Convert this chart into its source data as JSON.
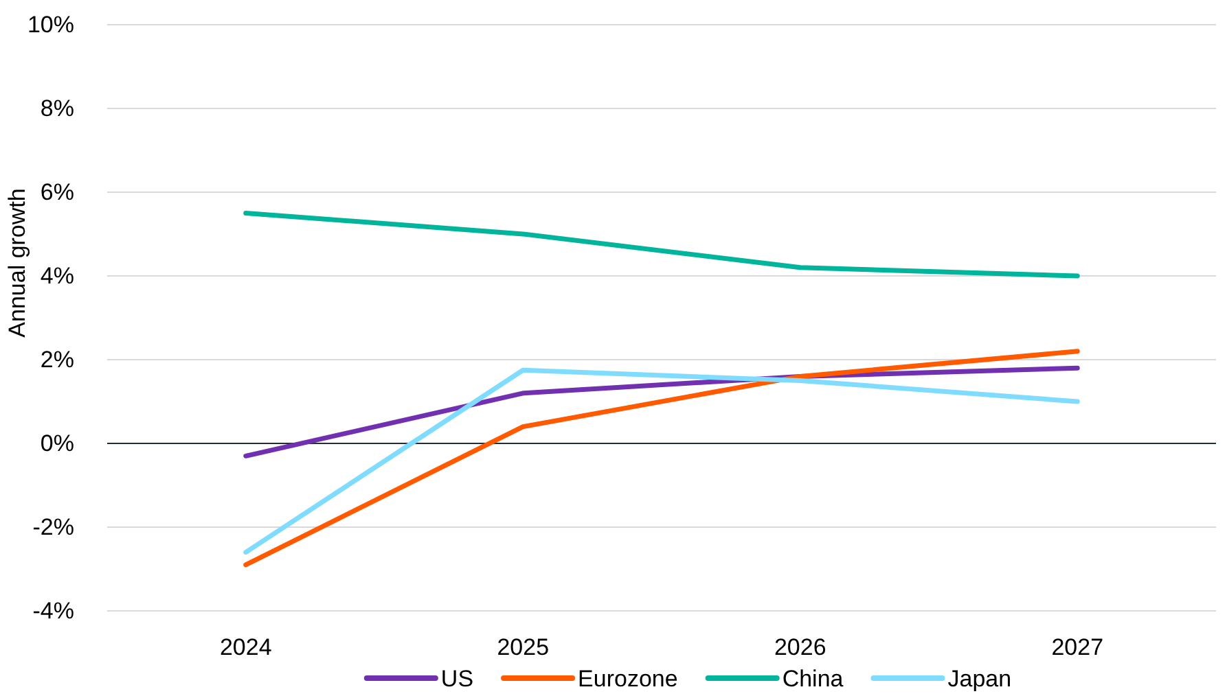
{
  "chart_data": {
    "type": "line",
    "ylabel": "Annual growth",
    "categories": [
      "2024",
      "2025",
      "2026",
      "2027"
    ],
    "series": [
      {
        "name": "US",
        "color": "#7030b0",
        "values": [
          -0.3,
          1.2,
          1.6,
          1.8
        ]
      },
      {
        "name": "Eurozone",
        "color": "#ff5a00",
        "values": [
          -2.9,
          0.4,
          1.6,
          2.2
        ]
      },
      {
        "name": "China",
        "color": "#00b59c",
        "values": [
          5.5,
          5.0,
          4.2,
          4.0
        ]
      },
      {
        "name": "Japan",
        "color": "#80dcff",
        "values": [
          -2.6,
          1.75,
          1.5,
          1.0
        ]
      }
    ],
    "ylim": [
      -4,
      10
    ],
    "yticks": [
      {
        "value": -4,
        "label": "-4%"
      },
      {
        "value": -2,
        "label": "-2%"
      },
      {
        "value": 0,
        "label": "0%"
      },
      {
        "value": 2,
        "label": "2%"
      },
      {
        "value": 4,
        "label": "4%"
      },
      {
        "value": 6,
        "label": "6%"
      },
      {
        "value": 8,
        "label": "8%"
      },
      {
        "value": 10,
        "label": "10%"
      }
    ],
    "grid": "y",
    "legend": "bottom",
    "marker": "none",
    "line_style": "solid"
  }
}
